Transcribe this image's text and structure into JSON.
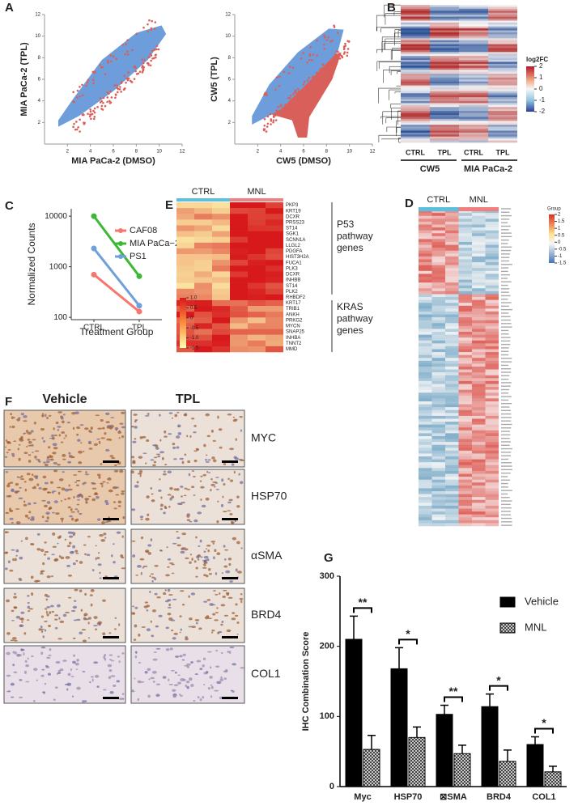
{
  "panel_labels": [
    "A",
    "B",
    "C",
    "D",
    "E",
    "F",
    "G"
  ],
  "panel_a": {
    "plots": [
      {
        "x_label": "MIA PaCa-2 (DMSO)",
        "y_label": "MIA PaCa-2  (TPL)",
        "xlim": [
          0,
          12
        ],
        "ylim": [
          0,
          12
        ],
        "xticks": [
          2,
          4,
          6,
          8,
          10,
          12
        ],
        "yticks": [
          2,
          4,
          6,
          8,
          10,
          12
        ]
      },
      {
        "x_label": "CW5 (DMSO)",
        "y_label": "CW5 (TPL)",
        "xlim": [
          0,
          12
        ],
        "ylim": [
          0,
          12
        ],
        "xticks": [
          2,
          4,
          6,
          8,
          10,
          12
        ],
        "yticks": [
          2,
          4,
          6,
          8,
          10,
          12
        ]
      }
    ]
  },
  "panel_b": {
    "column_labels": [
      "CTRL",
      "TPL",
      "CTRL",
      "TPL"
    ],
    "group_labels": [
      "CW5",
      "MIA PaCa-2"
    ],
    "legend_title": "log2FC",
    "legend_ticks": [
      2,
      1,
      0,
      -1,
      -2
    ]
  },
  "panel_d": {
    "column_labels": [
      "CTRL",
      "MNL"
    ],
    "legend_title": "Group",
    "legend_ticks": [
      2,
      1.5,
      1,
      0.5,
      0,
      -0.5,
      -1,
      -1.5
    ]
  },
  "panel_e": {
    "column_labels": [
      "CTRL",
      "MNL"
    ],
    "genes": [
      "PKP3",
      "KRT19",
      "DCXR",
      "PRSS23",
      "ST14",
      "SGK1",
      "SCNN1A",
      "LLGL2",
      "PDGFA",
      "HIST3H2A",
      "FUCA1",
      "PLK3",
      "DCXR",
      "INHBB",
      "ST14",
      "PLK2",
      "RHBDF2",
      "KRT17",
      "TRIB1",
      "ANKH",
      "PRKG2",
      "MYCN",
      "SNAP25",
      "INHBA",
      "TNNT2",
      "MMD"
    ],
    "pathways": [
      "P53\npathway\ngenes",
      "KRAS\npathway\ngenes"
    ],
    "legend_ticks": [
      {
        "value": 1,
        "label": "1.0"
      },
      {
        "value": 0.5,
        "label": "0.5"
      },
      {
        "value": 0,
        "label": "0"
      },
      {
        "value": -0.5,
        "label": "-0.5"
      },
      {
        "value": -1,
        "label": "-1.0"
      },
      {
        "value": -1.5,
        "label": "-1.5"
      }
    ]
  },
  "panel_f": {
    "column_labels": [
      "Vehicle",
      "TPL"
    ],
    "row_labels": [
      "MYC",
      "HSP70",
      "αSMA",
      "BRD4",
      "COL1"
    ]
  },
  "chart_data": [
    {
      "type": "line",
      "categories": [
        "CTRL",
        "TPL"
      ],
      "series": [
        {
          "name": "CAF08",
          "color": "#f8766d",
          "values": [
            700,
            130
          ]
        },
        {
          "name": "MIA PaCa−2",
          "color": "#3cb934",
          "values": [
            10000,
            650
          ]
        },
        {
          "name": "PS1",
          "color": "#6fa0db",
          "values": [
            2300,
            170
          ]
        }
      ],
      "log_scale": true,
      "ylim": [
        90,
        14000
      ],
      "yticks": [
        100,
        1000,
        10000
      ],
      "y_label": "Normalized Counts",
      "x_label": "Treatment Group",
      "legend": "right"
    },
    {
      "type": "bar",
      "categories": [
        "Myc",
        "HSP70",
        "⊠SMA",
        "BRD4",
        "COL1"
      ],
      "series": [
        {
          "name": "Vehicle",
          "color": "#000000",
          "values": [
            210,
            168,
            103,
            114,
            60
          ],
          "errors": [
            33,
            30,
            13,
            18,
            11
          ]
        },
        {
          "name": "MNL",
          "color": "#777777",
          "pattern": "crosshatch",
          "values": [
            53,
            70,
            47,
            36,
            21
          ],
          "errors": [
            20,
            15,
            12,
            16,
            8
          ]
        }
      ],
      "significance": [
        "**",
        "*",
        "**",
        "*",
        "*"
      ],
      "ylim": [
        0,
        300
      ],
      "yticks": [
        0,
        100,
        200,
        300
      ],
      "y_label": "IHC Combination Score",
      "legend": "upper right"
    }
  ]
}
